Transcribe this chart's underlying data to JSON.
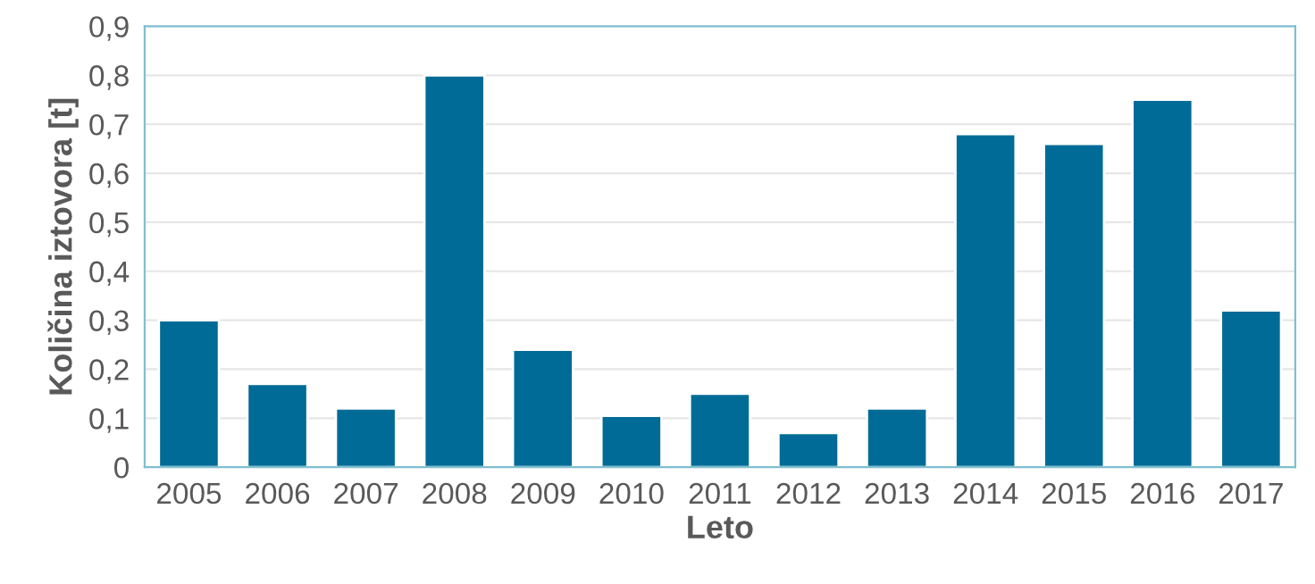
{
  "chart_data": {
    "type": "bar",
    "xlabel": "Leto",
    "ylabel": "Količina iztovora [t]",
    "categories": [
      "2005",
      "2006",
      "2007",
      "2008",
      "2009",
      "2010",
      "2011",
      "2012",
      "2013",
      "2014",
      "2015",
      "2016",
      "2017"
    ],
    "values": [
      0.3,
      0.17,
      0.12,
      0.8,
      0.24,
      0.105,
      0.15,
      0.07,
      0.12,
      0.68,
      0.66,
      0.75,
      0.32
    ],
    "color": "#006b96",
    "ylim": [
      0,
      0.9
    ],
    "yticks": [
      0,
      {
        "value": 0.1,
        "label": "0,1"
      },
      {
        "value": 0.2,
        "label": "0,2"
      },
      {
        "value": 0.3,
        "label": "0,3"
      },
      {
        "value": 0.4,
        "label": "0,4"
      },
      {
        "value": 0.5,
        "label": "0,5"
      },
      {
        "value": 0.6,
        "label": "0,6"
      },
      {
        "value": 0.7,
        "label": "0,7"
      },
      {
        "value": 0.8,
        "label": "0,8"
      },
      {
        "value": 0.9,
        "label": "0,9"
      }
    ],
    "grid": "y"
  }
}
